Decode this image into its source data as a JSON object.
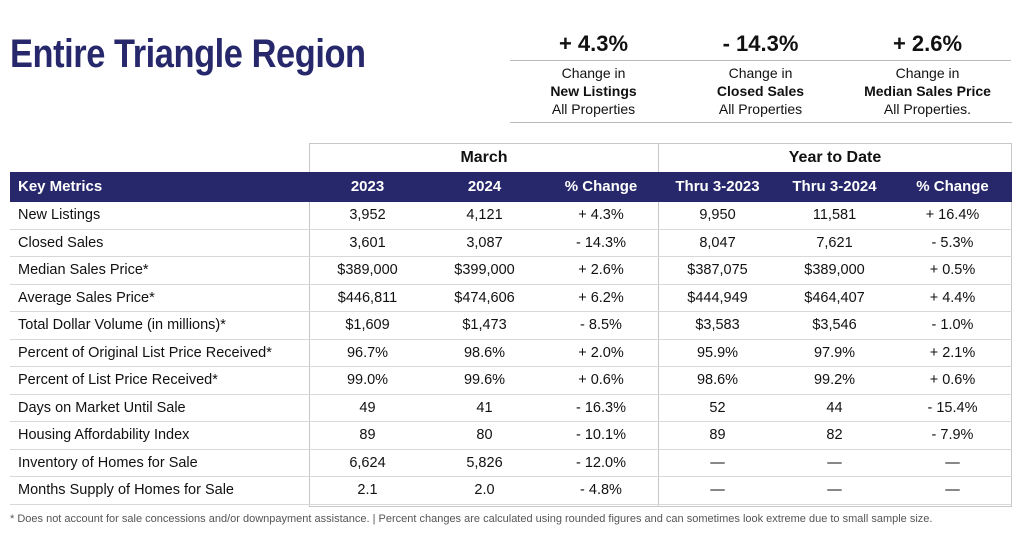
{
  "title": "Entire Triangle Region",
  "summary": [
    {
      "pct": "+ 4.3%",
      "line1": "Change in",
      "line2": "New Listings",
      "line3": "All Properties"
    },
    {
      "pct": "- 14.3%",
      "line1": "Change in",
      "line2": "Closed Sales",
      "line3": "All Properties"
    },
    {
      "pct": "+ 2.6%",
      "line1": "Change in",
      "line2": "Median Sales Price",
      "line3": "All Properties."
    }
  ],
  "table": {
    "group_march": "March",
    "group_ytd": "Year to Date",
    "headers": [
      "Key Metrics",
      "2023",
      "2024",
      "% Change",
      "Thru 3-2023",
      "Thru 3-2024",
      "% Change"
    ],
    "rows": [
      [
        "New Listings",
        "3,952",
        "4,121",
        "+ 4.3%",
        "9,950",
        "11,581",
        "+ 16.4%"
      ],
      [
        "Closed Sales",
        "3,601",
        "3,087",
        "- 14.3%",
        "8,047",
        "7,621",
        "- 5.3%"
      ],
      [
        "Median Sales Price*",
        "$389,000",
        "$399,000",
        "+ 2.6%",
        "$387,075",
        "$389,000",
        "+ 0.5%"
      ],
      [
        "Average Sales Price*",
        "$446,811",
        "$474,606",
        "+ 6.2%",
        "$444,949",
        "$464,407",
        "+ 4.4%"
      ],
      [
        "Total Dollar Volume (in millions)*",
        "$1,609",
        "$1,473",
        "- 8.5%",
        "$3,583",
        "$3,546",
        "- 1.0%"
      ],
      [
        "Percent of Original List Price Received*",
        "96.7%",
        "98.6%",
        "+ 2.0%",
        "95.9%",
        "97.9%",
        "+ 2.1%"
      ],
      [
        "Percent of List Price Received*",
        "99.0%",
        "99.6%",
        "+ 0.6%",
        "98.6%",
        "99.2%",
        "+ 0.6%"
      ],
      [
        "Days on Market Until Sale",
        "49",
        "41",
        "- 16.3%",
        "52",
        "44",
        "- 15.4%"
      ],
      [
        "Housing Affordability Index",
        "89",
        "80",
        "- 10.1%",
        "89",
        "82",
        "- 7.9%"
      ],
      [
        "Inventory of Homes for Sale",
        "6,624",
        "5,826",
        "- 12.0%",
        "—",
        "—",
        "—"
      ],
      [
        "Months Supply of Homes for Sale",
        "2.1",
        "2.0",
        "- 4.8%",
        "—",
        "—",
        "—"
      ]
    ]
  },
  "footnote": "* Does not account for sale concessions and/or downpayment assistance. | Percent changes are calculated using rounded figures and can sometimes look extreme due to small sample size.",
  "colors": {
    "accent": "#27286b"
  }
}
